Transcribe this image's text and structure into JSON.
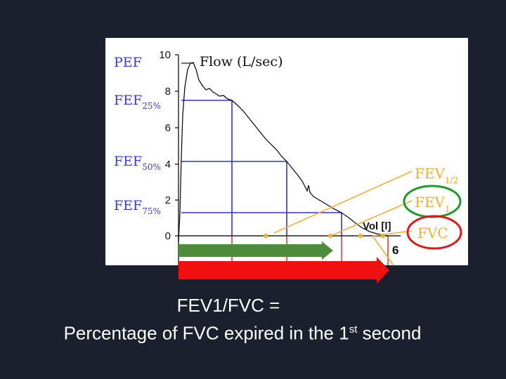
{
  "diagram": {
    "y_axis": {
      "title": "Flow (L/sec)",
      "ticks": [
        "10",
        "8",
        "6",
        "4",
        "2",
        "0"
      ]
    },
    "x_axis": {
      "title": "Vol [l]",
      "tick_end": "6"
    },
    "left_labels": {
      "pef": "PEF",
      "fef25": {
        "main": "FEF",
        "sub": "25%"
      },
      "fef50": {
        "main": "FEF",
        "sub": "50%"
      },
      "fef75": {
        "main": "FEF",
        "sub": "75%"
      }
    },
    "right_labels": {
      "fev_half": {
        "main": "FEV",
        "sub": "1/2"
      },
      "fev1": {
        "main": "FEV",
        "sub": "1"
      },
      "fvc": "FVC"
    },
    "colors": {
      "label_blue": "#3a3adc",
      "grid_blue": "#3030e0",
      "label_orange": "#f2b035",
      "gridline_red": "#e03030",
      "arrow_green": "#4e8c3c",
      "arrow_red": "#f01010",
      "circle_green": "#1f9a2a",
      "circle_red": "#e01818",
      "background": "#1c1f2e"
    }
  },
  "caption": {
    "line1": "FEV1/FVC =",
    "line2_before": "Percentage of FVC expired in the 1",
    "line2_sup": "st",
    "line2_after": " second"
  }
}
